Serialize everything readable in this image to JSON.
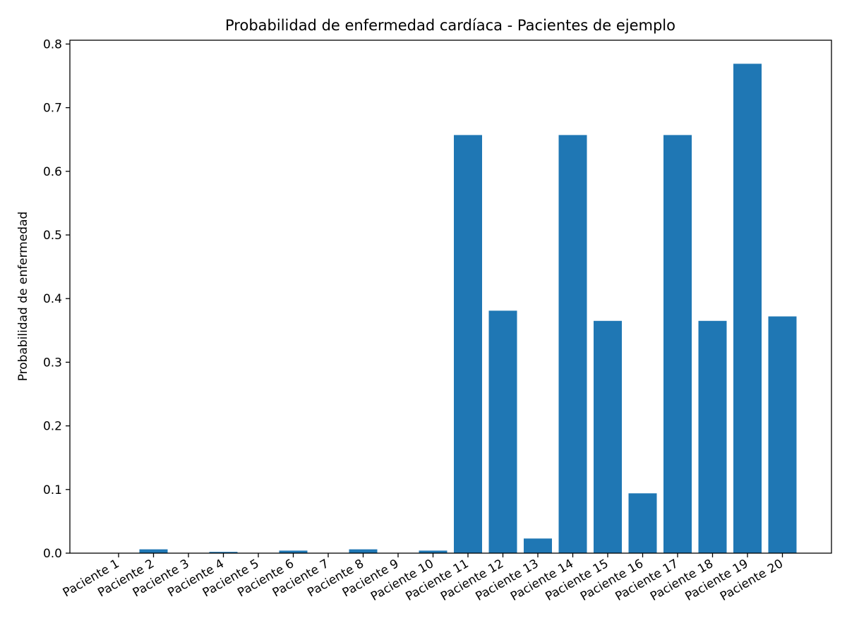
{
  "chart_data": {
    "type": "bar",
    "title": "Probabilidad de enfermedad cardíaca - Pacientes de ejemplo",
    "xlabel": "",
    "ylabel": "Probabilidad de enfermedad",
    "categories": [
      "Paciente 1",
      "Paciente 2",
      "Paciente 3",
      "Paciente 4",
      "Paciente 5",
      "Paciente 6",
      "Paciente 7",
      "Paciente 8",
      "Paciente 9",
      "Paciente 10",
      "Paciente 11",
      "Paciente 12",
      "Paciente 13",
      "Paciente 14",
      "Paciente 15",
      "Paciente 16",
      "Paciente 17",
      "Paciente 18",
      "Paciente 19",
      "Paciente 20"
    ],
    "values": [
      0.0005,
      0.006,
      0.0005,
      0.002,
      0.0005,
      0.004,
      0.0005,
      0.006,
      0.0005,
      0.004,
      0.657,
      0.381,
      0.023,
      0.657,
      0.365,
      0.094,
      0.657,
      0.365,
      0.769,
      0.372
    ],
    "ylim": [
      0,
      0.806
    ],
    "yticks": [
      "0.0",
      "0.1",
      "0.2",
      "0.3",
      "0.4",
      "0.5",
      "0.6",
      "0.7",
      "0.8"
    ],
    "bar_color": "#1f77b4",
    "grid": false,
    "legend": "none"
  }
}
